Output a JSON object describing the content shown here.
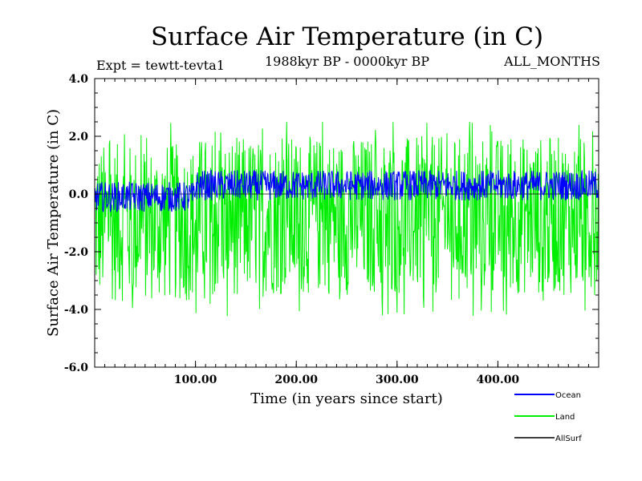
{
  "chart_data": {
    "type": "line",
    "title": "Surface Air Temperature (in C)",
    "subtitle": "1988kyr BP - 0000kyr BP",
    "experiment": "Expt = tewtt-tevta1",
    "period": "ALL_MONTHS",
    "xlabel": "Time (in years since start)",
    "ylabel": "Surface Air Temperature (in C)",
    "xlim": [
      0,
      500
    ],
    "ylim": [
      -6,
      4
    ],
    "x_ticks": [
      100,
      200,
      300,
      400
    ],
    "x_tick_labels": [
      "100.00",
      "200.00",
      "300.00",
      "400.00"
    ],
    "y_ticks": [
      4,
      2,
      0,
      -2,
      -4,
      -6
    ],
    "y_tick_labels": [
      "4.0",
      "2.0",
      "0.0",
      "-2.0",
      "-4.0",
      "-6.0"
    ],
    "series": [
      {
        "name": "Land",
        "color": "#00ee00",
        "mean_before_100": -1.0,
        "mean_after_100": -0.75,
        "spread": 2.9,
        "min": -4.6,
        "max": 2.5
      },
      {
        "name": "Ocean",
        "color": "#0000ff",
        "mean_before_100": -0.1,
        "mean_after_100": 0.3,
        "spread": 0.7,
        "min": -0.8,
        "max": 1.0
      },
      {
        "name": "AllSurf",
        "color": "#000000",
        "value": 0.0
      }
    ],
    "legend": [
      "Ocean",
      "Land",
      "AllSurf"
    ]
  }
}
